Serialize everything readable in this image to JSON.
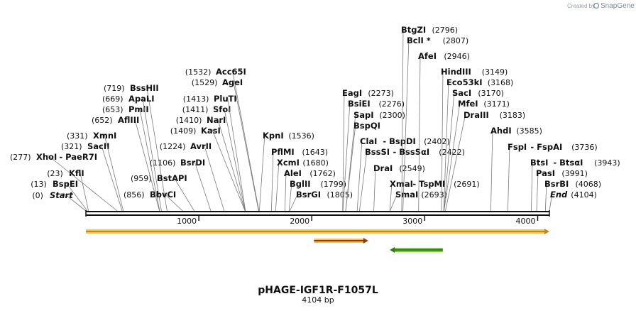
{
  "watermark": {
    "prefix": "Created by",
    "brand": "SnapGene"
  },
  "plasmid": {
    "name": "pHAGE-IGF1R-F1057L",
    "size_label": "4104 bp",
    "length_bp": 4104
  },
  "ruler": {
    "ticks": [
      1000,
      2000,
      3000,
      4000
    ]
  },
  "features": [
    {
      "name": "main-orange-arrow",
      "start": 0,
      "end": 4104,
      "direction": "forward",
      "color": "#f5c54a",
      "outline": "#c8861f"
    },
    {
      "name": "small-orange-arrow",
      "start": 2020,
      "end": 2500,
      "direction": "forward",
      "color": "#f5c54a",
      "outline": "#8a3b0e"
    },
    {
      "name": "green-arrow",
      "start": 2690,
      "end": 3160,
      "direction": "reverse",
      "color": "#7ac943",
      "outline": "#2f7d14"
    }
  ],
  "sites": [
    {
      "id": "start",
      "name": "Start",
      "pos": "(0)",
      "bp": 0,
      "italic": true
    },
    {
      "id": "bspei",
      "name": "BspEI",
      "pos": "(13)",
      "bp": 13
    },
    {
      "id": "kfli",
      "name": "KflI",
      "pos": "(23)",
      "bp": 23
    },
    {
      "id": "xhoi",
      "name": "XhoI",
      "pos": "(277)",
      "bp": 277,
      "alt": "PaeR7I"
    },
    {
      "id": "sacii",
      "name": "SacII",
      "pos": "(321)",
      "bp": 321
    },
    {
      "id": "xmni",
      "name": "XmnI",
      "pos": "(331)",
      "bp": 331
    },
    {
      "id": "afliii",
      "name": "AflIII",
      "pos": "(652)",
      "bp": 652
    },
    {
      "id": "pmli",
      "name": "PmlI",
      "pos": "(653)",
      "bp": 653
    },
    {
      "id": "apali",
      "name": "ApaLI",
      "pos": "(669)",
      "bp": 669
    },
    {
      "id": "bsshii",
      "name": "BssHII",
      "pos": "(719)",
      "bp": 719
    },
    {
      "id": "bbvci",
      "name": "BbvCI",
      "pos": "(856)",
      "bp": 856
    },
    {
      "id": "bstapi",
      "name": "BstAPI",
      "pos": "(959)",
      "bp": 959
    },
    {
      "id": "bsrdi",
      "name": "BsrDI",
      "pos": "(1106)",
      "bp": 1106
    },
    {
      "id": "avrii",
      "name": "AvrII",
      "pos": "(1224)",
      "bp": 1224
    },
    {
      "id": "kasi",
      "name": "KasI",
      "pos": "(1409)",
      "bp": 1409
    },
    {
      "id": "nari",
      "name": "NarI",
      "pos": "(1410)",
      "bp": 1410
    },
    {
      "id": "sfoi",
      "name": "SfoI",
      "pos": "(1411)",
      "bp": 1411
    },
    {
      "id": "pluti",
      "name": "PluTI",
      "pos": "(1413)",
      "bp": 1413
    },
    {
      "id": "agei",
      "name": "AgeI",
      "pos": "(1529)",
      "bp": 1529
    },
    {
      "id": "acc65i",
      "name": "Acc65I",
      "pos": "(1532)",
      "bp": 1532
    },
    {
      "id": "kpni",
      "name": "KpnI",
      "pos": "(1536)",
      "bp": 1536
    },
    {
      "id": "pflmi",
      "name": "PflMI",
      "pos": "(1643)",
      "bp": 1643
    },
    {
      "id": "xcmi",
      "name": "XcmI",
      "pos": "(1680)",
      "bp": 1680
    },
    {
      "id": "alei",
      "name": "AleI",
      "pos": "(1762)",
      "bp": 1762
    },
    {
      "id": "bglii",
      "name": "BglII",
      "pos": "(1799)",
      "bp": 1799
    },
    {
      "id": "bsrgi",
      "name": "BsrGI",
      "pos": "(1805)",
      "bp": 1805
    },
    {
      "id": "eagi",
      "name": "EagI",
      "pos": "(2273)",
      "bp": 2273
    },
    {
      "id": "bsiei",
      "name": "BsiEI",
      "pos": "(2276)",
      "bp": 2276
    },
    {
      "id": "sapi",
      "name": "SapI",
      "pos": "(2300)",
      "bp": 2300
    },
    {
      "id": "bspqi",
      "name": "BspQI",
      "pos": "",
      "bp": 2300
    },
    {
      "id": "clai",
      "name": "ClaI",
      "pos": "(2402)",
      "bp": 2402,
      "alt": "BspDI"
    },
    {
      "id": "bsssi",
      "name": "BssSI",
      "pos": "(2422)",
      "bp": 2422,
      "alt": "BssSαI"
    },
    {
      "id": "drai",
      "name": "DraI",
      "pos": "(2549)",
      "bp": 2549
    },
    {
      "id": "xmai",
      "name": "XmaI",
      "pos": "(2691)",
      "bp": 2691,
      "alt": "TspMI"
    },
    {
      "id": "smai",
      "name": "SmaI",
      "pos": "(2693)",
      "bp": 2693
    },
    {
      "id": "btgzi",
      "name": "BtgZI",
      "pos": "(2796)",
      "bp": 2796
    },
    {
      "id": "bcli",
      "name": "BclI *",
      "pos": "(2807)",
      "bp": 2807
    },
    {
      "id": "afei",
      "name": "AfeI",
      "pos": "(2946)",
      "bp": 2946
    },
    {
      "id": "hindiii",
      "name": "HindIII",
      "pos": "(3149)",
      "bp": 3149
    },
    {
      "id": "eco53ki",
      "name": "Eco53kI",
      "pos": "(3168)",
      "bp": 3168
    },
    {
      "id": "saci",
      "name": "SacI",
      "pos": "(3170)",
      "bp": 3170
    },
    {
      "id": "mfei",
      "name": "MfeI",
      "pos": "(3171)",
      "bp": 3171
    },
    {
      "id": "draiii",
      "name": "DraIII",
      "pos": "(3183)",
      "bp": 3183
    },
    {
      "id": "ahdi",
      "name": "AhdI",
      "pos": "(3585)",
      "bp": 3585
    },
    {
      "id": "fspi",
      "name": "FspI",
      "pos": "(3736)",
      "bp": 3736,
      "alt": "FspAI"
    },
    {
      "id": "btsi",
      "name": "BtsI",
      "pos": "(3943)",
      "bp": 3943,
      "alt": "BtsαI"
    },
    {
      "id": "pasi",
      "name": "PasI",
      "pos": "(3991)",
      "bp": 3991
    },
    {
      "id": "bsrbi",
      "name": "BsrBI",
      "pos": "(4068)",
      "bp": 4068
    },
    {
      "id": "end",
      "name": "End",
      "pos": "(4104)",
      "bp": 4104,
      "italic": true
    }
  ]
}
